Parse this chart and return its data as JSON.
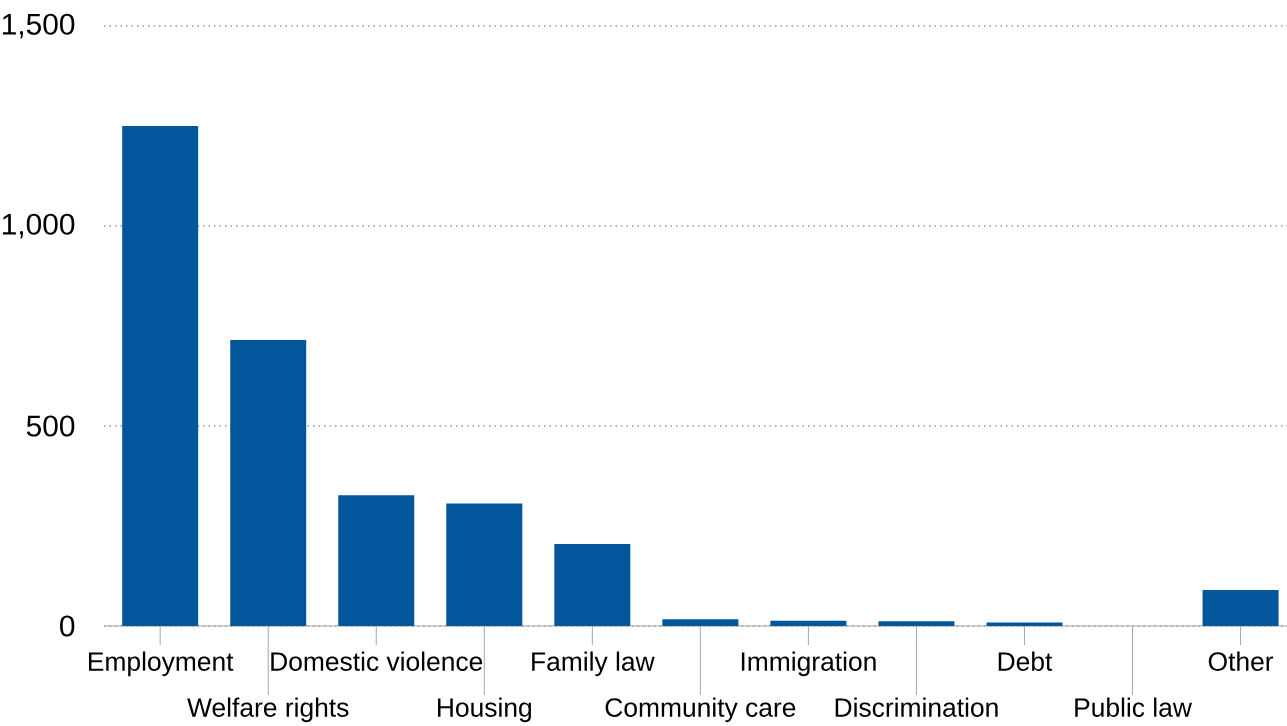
{
  "chart_data": {
    "type": "bar",
    "categories": [
      "Employment",
      "Welfare rights",
      "Domestic violence",
      "Housing",
      "Family law",
      "Community care",
      "Immigration",
      "Discrimination",
      "Debt",
      "Public law",
      "Other"
    ],
    "values": [
      1250,
      715,
      327,
      306,
      205,
      17,
      13,
      12,
      9,
      null,
      90
    ],
    "color": "#02569b",
    "ylim": [
      0,
      1500
    ],
    "yticks": [
      0,
      500,
      {
        "value": 1000,
        "label": "1,000"
      },
      {
        "value": 1500,
        "label": "1,500"
      }
    ],
    "grid": "y"
  }
}
